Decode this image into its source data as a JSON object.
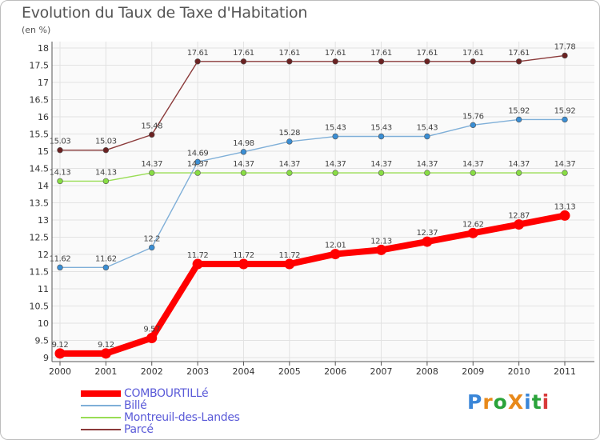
{
  "title": "Evolution du Taux de Taxe d'Habitation",
  "subtitle": "(en %)",
  "logo": {
    "letters": [
      {
        "ch": "P",
        "color": "#3a86d8"
      },
      {
        "ch": "r",
        "color": "#e8891a"
      },
      {
        "ch": "o",
        "color": "#2aa33a"
      },
      {
        "ch": "X",
        "color": "#e8891a"
      },
      {
        "ch": "i",
        "color": "#3a86d8"
      },
      {
        "ch": "t",
        "color": "#2aa33a"
      },
      {
        "ch": "i",
        "color": "#d83a3a"
      }
    ]
  },
  "chart_data": {
    "type": "line",
    "title": "Evolution du Taux de Taxe d'Habitation",
    "subtitle": "(en %)",
    "xlabel": "",
    "ylabel": "",
    "x": [
      "2000",
      "2001",
      "2002",
      "2003",
      "2004",
      "2005",
      "2006",
      "2007",
      "2008",
      "2009",
      "2010",
      "2011"
    ],
    "ylim": [
      9,
      18
    ],
    "yticks": [
      "9",
      "9.5",
      "10",
      "10.5",
      "11",
      "11.5",
      "12",
      "12.5",
      "13",
      "13.5",
      "14",
      "14.5",
      "15",
      "15.5",
      "16",
      "16.5",
      "17",
      "17.5",
      "18"
    ],
    "grid": true,
    "legend_position": "bottom-left",
    "series": [
      {
        "name": "COMBOURTILLé",
        "color": "#ff0000",
        "values": [
          9.12,
          9.12,
          9.57,
          11.72,
          11.72,
          11.72,
          12.01,
          12.13,
          12.37,
          12.62,
          12.87,
          13.13
        ],
        "labels": [
          "9.12",
          "9.12",
          "9.57",
          "11.72",
          "11.72",
          "11.72",
          "12.01",
          "12.13",
          "12.37",
          "12.62",
          "12.87",
          "13.13"
        ]
      },
      {
        "name": "Billé",
        "color": "#7fafd8",
        "values": [
          11.62,
          11.62,
          12.2,
          14.69,
          14.98,
          15.28,
          15.43,
          15.43,
          15.43,
          15.76,
          15.92,
          15.92
        ],
        "labels": [
          "11.62",
          "11.62",
          "12.2",
          "14.69",
          "14.98",
          "15.28",
          "15.43",
          "15.43",
          "15.43",
          "15.76",
          "15.92",
          "15.92"
        ]
      },
      {
        "name": "Montreuil-des-Landes",
        "color": "#99dd55",
        "values": [
          14.13,
          14.13,
          14.37,
          14.37,
          14.37,
          14.37,
          14.37,
          14.37,
          14.37,
          14.37,
          14.37,
          14.37
        ],
        "labels": [
          "14.13",
          "14.13",
          "14.37",
          "14.37",
          "14.37",
          "14.37",
          "14.37",
          "14.37",
          "14.37",
          "14.37",
          "14.37",
          "14.37"
        ]
      },
      {
        "name": "Parcé",
        "color": "#8b3a3a",
        "values": [
          15.03,
          15.03,
          15.48,
          17.61,
          17.61,
          17.61,
          17.61,
          17.61,
          17.61,
          17.61,
          17.61,
          17.78
        ],
        "labels": [
          "15.03",
          "15.03",
          "15.48",
          "17.61",
          "17.61",
          "17.61",
          "17.61",
          "17.61",
          "17.61",
          "17.61",
          "17.61",
          "17.78"
        ]
      }
    ]
  }
}
